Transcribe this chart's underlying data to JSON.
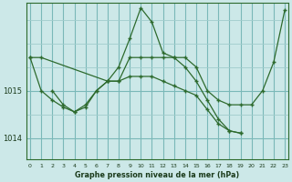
{
  "background_color": "#cce8e8",
  "plot_bg_color": "#cce8e8",
  "line_color": "#2d6a2d",
  "grid_color_major": "#7ab8b8",
  "grid_color_minor": "#a0cccc",
  "xlabel": "Graphe pression niveau de la mer (hPa)",
  "ylim": [
    1013.55,
    1016.85
  ],
  "yticks": [
    1014,
    1015
  ],
  "xlim": [
    -0.3,
    23.3
  ],
  "xticks": [
    0,
    1,
    2,
    3,
    4,
    5,
    6,
    7,
    8,
    9,
    10,
    11,
    12,
    13,
    14,
    15,
    16,
    17,
    18,
    19,
    20,
    21,
    22,
    23
  ],
  "series": [
    {
      "x": [
        0,
        1,
        7,
        8,
        9,
        10,
        11,
        12,
        13,
        14,
        15,
        16,
        17,
        18,
        19,
        20,
        21,
        22,
        23
      ],
      "y": [
        1015.7,
        1015.7,
        1015.2,
        1015.2,
        1015.7,
        1015.7,
        1015.7,
        1015.7,
        1015.7,
        1015.7,
        1015.5,
        1015.0,
        1014.8,
        1014.7,
        1014.7,
        1014.7,
        1015.0,
        1015.6,
        1016.7
      ]
    },
    {
      "x": [
        2,
        3,
        4,
        5,
        6,
        7,
        8,
        9,
        10,
        11,
        12,
        13,
        14,
        15,
        16,
        17,
        18,
        19
      ],
      "y": [
        1015.0,
        1014.7,
        1014.55,
        1014.7,
        1015.0,
        1015.2,
        1015.5,
        1016.1,
        1016.75,
        1016.45,
        1015.8,
        1015.7,
        1015.5,
        1015.2,
        1014.8,
        1014.4,
        1014.15,
        1014.1
      ]
    },
    {
      "x": [
        0,
        1,
        2,
        3,
        4,
        5,
        6,
        7,
        8,
        9,
        10,
        11,
        12,
        13,
        14,
        15,
        16,
        17,
        18,
        19
      ],
      "y": [
        1015.7,
        1015.0,
        1014.8,
        1014.65,
        1014.55,
        1014.65,
        1015.0,
        1015.2,
        1015.2,
        1015.3,
        1015.3,
        1015.3,
        1015.2,
        1015.1,
        1015.0,
        1014.9,
        1014.6,
        1014.3,
        1014.15,
        1014.1
      ]
    }
  ]
}
